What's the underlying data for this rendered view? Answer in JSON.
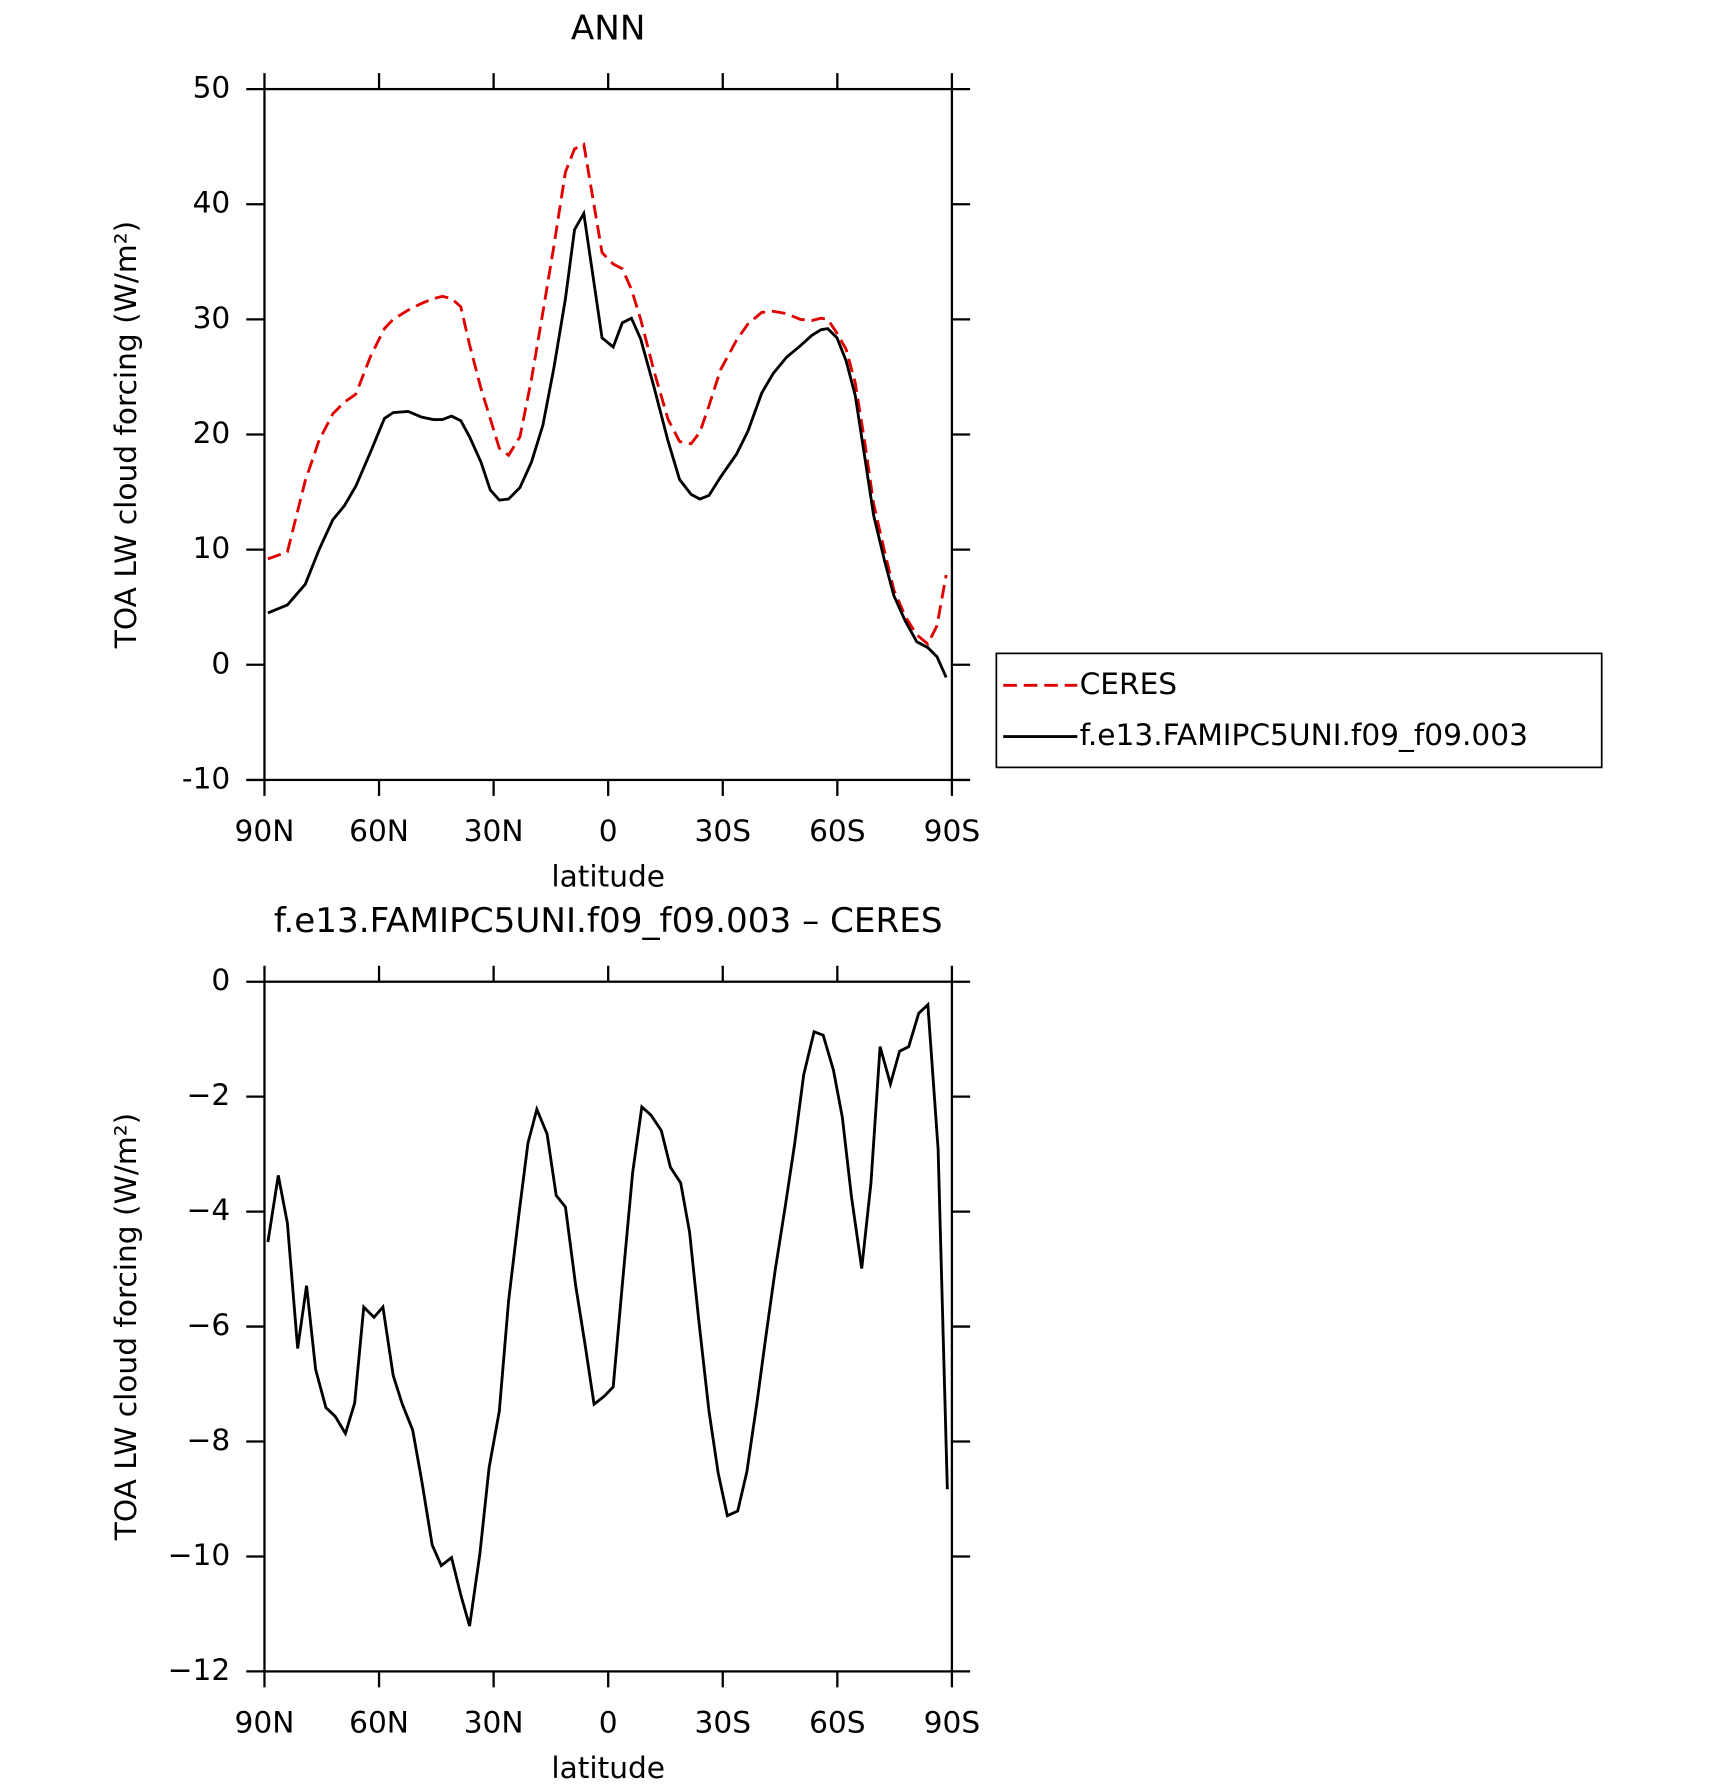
{
  "chart_data": [
    {
      "type": "line",
      "title": "ANN",
      "x_label": "latitude",
      "y_label": "TOA LW cloud forcing (W/m²)",
      "xlim": [
        90,
        -90
      ],
      "xticks": [
        {
          "value": 90,
          "label": "90N"
        },
        {
          "value": 60,
          "label": "60N"
        },
        {
          "value": 30,
          "label": "30N"
        },
        0,
        {
          "value": -30,
          "label": "30S"
        },
        {
          "value": -60,
          "label": "60S"
        },
        {
          "value": -90,
          "label": "90S"
        }
      ],
      "ylim": [
        -10,
        50
      ],
      "yticks": [
        -10,
        0,
        10,
        20,
        30,
        40,
        50
      ],
      "legend": "right",
      "x": [
        89.1,
        84.0,
        79.3,
        75.7,
        72.1,
        69.1,
        66.1,
        62.2,
        58.6,
        56.3,
        52.4,
        48.8,
        45.8,
        43.4,
        41.0,
        38.6,
        36.3,
        33.3,
        30.9,
        28.5,
        26.1,
        23.1,
        20.1,
        17.1,
        14.2,
        11.2,
        8.8,
        6.4,
        4.0,
        1.6,
        -1.3,
        -3.7,
        -6.1,
        -8.5,
        -12.1,
        -15.7,
        -18.7,
        -21.7,
        -24.0,
        -26.4,
        -29.4,
        -33.6,
        -36.6,
        -40.2,
        -43.2,
        -46.7,
        -50.3,
        -53.3,
        -55.7,
        -57.5,
        -59.9,
        -62.3,
        -64.7,
        -67.1,
        -69.5,
        -72.4,
        -74.8,
        -77.8,
        -80.8,
        -83.7,
        -86.1,
        -88.5
      ],
      "series": [
        {
          "name": "CERES",
          "color": "#e00000",
          "dash": "dashed",
          "values": [
            9.2,
            9.8,
            16,
            19.5,
            21.8,
            22.8,
            23.5,
            26.8,
            29.2,
            30,
            30.8,
            31.4,
            31.8,
            32,
            31.8,
            31.1,
            27.8,
            24,
            21.4,
            18.8,
            18.2,
            19.8,
            24.8,
            30.6,
            36.4,
            42.8,
            44.8,
            45.2,
            40.5,
            35.8,
            34.8,
            34.4,
            32.6,
            30,
            25.4,
            21.3,
            19.4,
            19.2,
            20.2,
            22.5,
            25.6,
            28.2,
            29.6,
            30.6,
            30.7,
            30.5,
            30,
            29.9,
            30.1,
            30,
            28.8,
            27.4,
            24.5,
            19.5,
            14,
            9.8,
            6.5,
            4.2,
            2.6,
            1.8,
            3.4,
            7.8
          ]
        },
        {
          "name": "f.e13.FAMIPC5UNI.f09_f09.003",
          "color": "#000000",
          "dash": "solid",
          "values": [
            4.5,
            5.2,
            7,
            10,
            12.6,
            13.8,
            15.5,
            18.5,
            21.4,
            21.9,
            22,
            21.5,
            21.3,
            21.3,
            21.6,
            21.2,
            19.8,
            17.6,
            15.2,
            14.3,
            14.4,
            15.4,
            17.6,
            20.8,
            25.8,
            31.8,
            37.8,
            39.2,
            33.8,
            28.4,
            27.6,
            29.7,
            30.1,
            28.3,
            24,
            19.4,
            16.1,
            14.8,
            14.4,
            14.7,
            16.3,
            18.3,
            20.3,
            23.6,
            25.3,
            26.7,
            27.7,
            28.6,
            29.1,
            29.2,
            28.4,
            26.4,
            23.4,
            18.2,
            13,
            9,
            6,
            3.8,
            2,
            1.5,
            0.7,
            -1.1
          ]
        }
      ]
    },
    {
      "type": "line",
      "title": "f.e13.FAMIPC5UNI.f09_f09.003 – CERES",
      "x_label": "latitude",
      "y_label": "TOA LW cloud forcing (W/m²)",
      "xlim": [
        90,
        -90
      ],
      "xticks": [
        {
          "value": 90,
          "label": "90N"
        },
        {
          "value": 60,
          "label": "60N"
        },
        {
          "value": 30,
          "label": "30N"
        },
        0,
        {
          "value": -30,
          "label": "30S"
        },
        {
          "value": -60,
          "label": "60S"
        },
        {
          "value": -90,
          "label": "90S"
        }
      ],
      "ylim": [
        -12,
        0
      ],
      "yticks": [
        {
          "value": -12,
          "label": "−12"
        },
        {
          "value": -10,
          "label": "−10"
        },
        {
          "value": -8,
          "label": "−8"
        },
        {
          "value": -6,
          "label": "−6"
        },
        {
          "value": -4,
          "label": "−4"
        },
        {
          "value": -2,
          "label": "−2"
        },
        0
      ],
      "x": [
        89.1,
        86.4,
        84.0,
        81.3,
        79.0,
        76.6,
        73.9,
        71.5,
        68.8,
        66.4,
        64.0,
        61.3,
        59.0,
        56.3,
        53.9,
        51.2,
        48.8,
        46.1,
        43.7,
        41.0,
        38.6,
        36.3,
        33.6,
        31.2,
        28.5,
        26.1,
        23.4,
        21.0,
        18.7,
        16.0,
        13.6,
        11.2,
        8.5,
        6.1,
        3.7,
        1.0,
        -1.3,
        -3.7,
        -6.4,
        -8.8,
        -11.2,
        -13.9,
        -16.3,
        -19.0,
        -21.3,
        -23.7,
        -26.4,
        -28.8,
        -31.2,
        -33.9,
        -36.3,
        -39.0,
        -41.3,
        -43.7,
        -46.4,
        -48.8,
        -51.2,
        -53.9,
        -56.3,
        -59.0,
        -61.3,
        -63.7,
        -66.4,
        -68.8,
        -71.2,
        -73.9,
        -76.3,
        -78.7,
        -81.3,
        -83.7,
        -86.4,
        -88.8
      ],
      "color": "#000000",
      "values": [
        -4.53,
        -3.37,
        -4.2,
        -6.38,
        -5.29,
        -6.75,
        -7.41,
        -7.56,
        -7.86,
        -7.33,
        -5.66,
        -5.84,
        -5.66,
        -6.85,
        -7.35,
        -7.8,
        -8.69,
        -9.8,
        -10.16,
        -10.02,
        -10.67,
        -11.21,
        -9.96,
        -8.46,
        -7.47,
        -5.56,
        -4.06,
        -2.81,
        -2.22,
        -2.65,
        -3.72,
        -3.92,
        -5.29,
        -6.3,
        -7.35,
        -7.21,
        -7.05,
        -5.27,
        -3.33,
        -2.18,
        -2.32,
        -2.59,
        -3.23,
        -3.5,
        -4.36,
        -5.88,
        -7.47,
        -8.55,
        -9.29,
        -9.21,
        -8.53,
        -7.31,
        -6.16,
        -5.03,
        -3.9,
        -2.83,
        -1.62,
        -0.87,
        -0.93,
        -1.54,
        -2.36,
        -3.74,
        -4.99,
        -3.5,
        -1.13,
        -1.78,
        -1.21,
        -1.13,
        -0.55,
        -0.4,
        -2.91,
        -8.83
      ]
    }
  ]
}
